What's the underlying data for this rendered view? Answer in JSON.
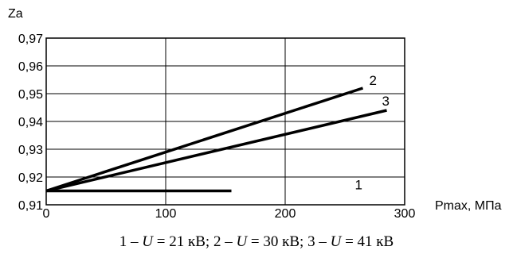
{
  "chart_data": {
    "type": "line",
    "title": "",
    "ylabel": "Za",
    "xlabel": "Pmax, МПа",
    "xlim": [
      0,
      300
    ],
    "ylim": [
      0.91,
      0.97
    ],
    "x_ticks": [
      0,
      100,
      200,
      300
    ],
    "x_tick_labels": [
      "0",
      "100",
      "200",
      "300"
    ],
    "y_ticks": [
      0.91,
      0.92,
      0.93,
      0.94,
      0.95,
      0.96,
      0.97
    ],
    "y_tick_labels": [
      "0,91",
      "0,92",
      "0,93",
      "0,94",
      "0,95",
      "0,96",
      "0,97"
    ],
    "grid": true,
    "series": [
      {
        "name": "1",
        "x": [
          0,
          155
        ],
        "y": [
          0.915,
          0.915
        ]
      },
      {
        "name": "2",
        "x": [
          0,
          265
        ],
        "y": [
          0.915,
          0.952
        ]
      },
      {
        "name": "3",
        "x": [
          0,
          285
        ],
        "y": [
          0.915,
          0.944
        ]
      }
    ]
  },
  "caption": {
    "s1_num": "1 – ",
    "s1_var": "U",
    "s1_val": " = 21 кВ; ",
    "s2_num": "2 – ",
    "s2_var": "U",
    "s2_val": " = 30 кВ; ",
    "s3_num": "3 – ",
    "s3_var": "U",
    "s3_val": " = 41 кВ"
  }
}
